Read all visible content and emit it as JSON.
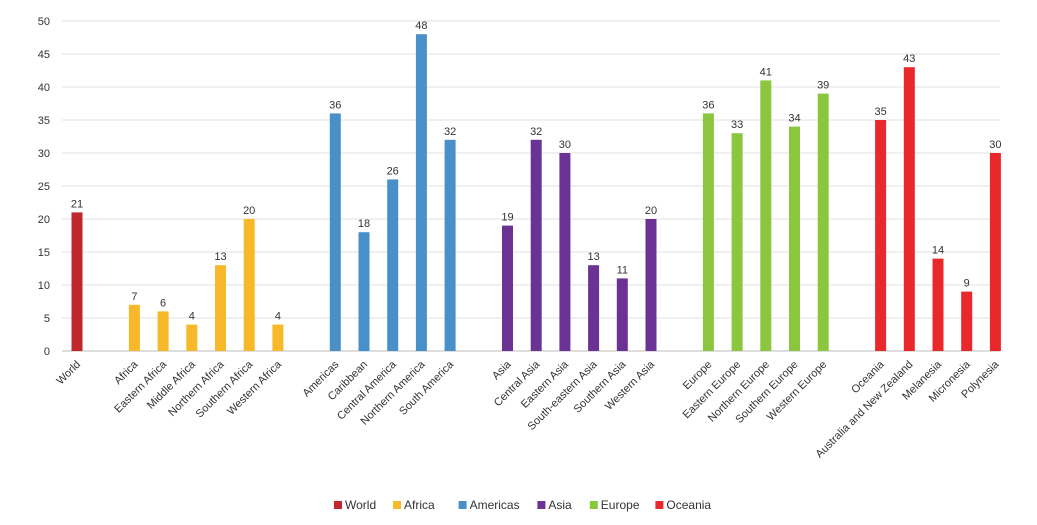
{
  "chart_data": {
    "type": "bar",
    "title": "",
    "xlabel": "",
    "ylabel": "",
    "ylim": [
      0,
      50
    ],
    "yticks": [
      0,
      5,
      10,
      15,
      20,
      25,
      30,
      35,
      40,
      45,
      50
    ],
    "grid": true,
    "legend_position": "bottom-center",
    "groups": [
      {
        "name": "World",
        "color": "#c0272d",
        "categories": [
          "World"
        ],
        "values": [
          21
        ]
      },
      {
        "name": "Africa",
        "color": "#f7b82a",
        "categories": [
          "Africa",
          "Eastern Africa",
          "Middle Africa",
          "Northern Africa",
          "Southern Africa",
          "Western Africa"
        ],
        "values": [
          7,
          6,
          4,
          13,
          20,
          4
        ]
      },
      {
        "name": "Americas",
        "color": "#4a90c8",
        "categories": [
          "Americas",
          "Caribbean",
          "Central America",
          "Northern America",
          "South America"
        ],
        "values": [
          36,
          18,
          26,
          48,
          32
        ]
      },
      {
        "name": "Asia",
        "color": "#6a3393",
        "categories": [
          "Asia",
          "Central Asia",
          "Eastern Asia",
          "South-eastern Asia",
          "Southern Asia",
          "Western Asia"
        ],
        "values": [
          19,
          32,
          30,
          13,
          11,
          20
        ]
      },
      {
        "name": "Europe",
        "color": "#8cc63e",
        "categories": [
          "Europe",
          "Eastern Europe",
          "Northern Europe",
          "Southern Europe",
          "Western Europe"
        ],
        "values": [
          36,
          33,
          41,
          34,
          39
        ]
      },
      {
        "name": "Oceania",
        "color": "#e8282b",
        "categories": [
          "Oceania",
          "Australia and New Zealand",
          "Melanesia",
          "Micronesia",
          "Polynesia"
        ],
        "values": [
          35,
          43,
          14,
          9,
          30
        ]
      }
    ]
  }
}
